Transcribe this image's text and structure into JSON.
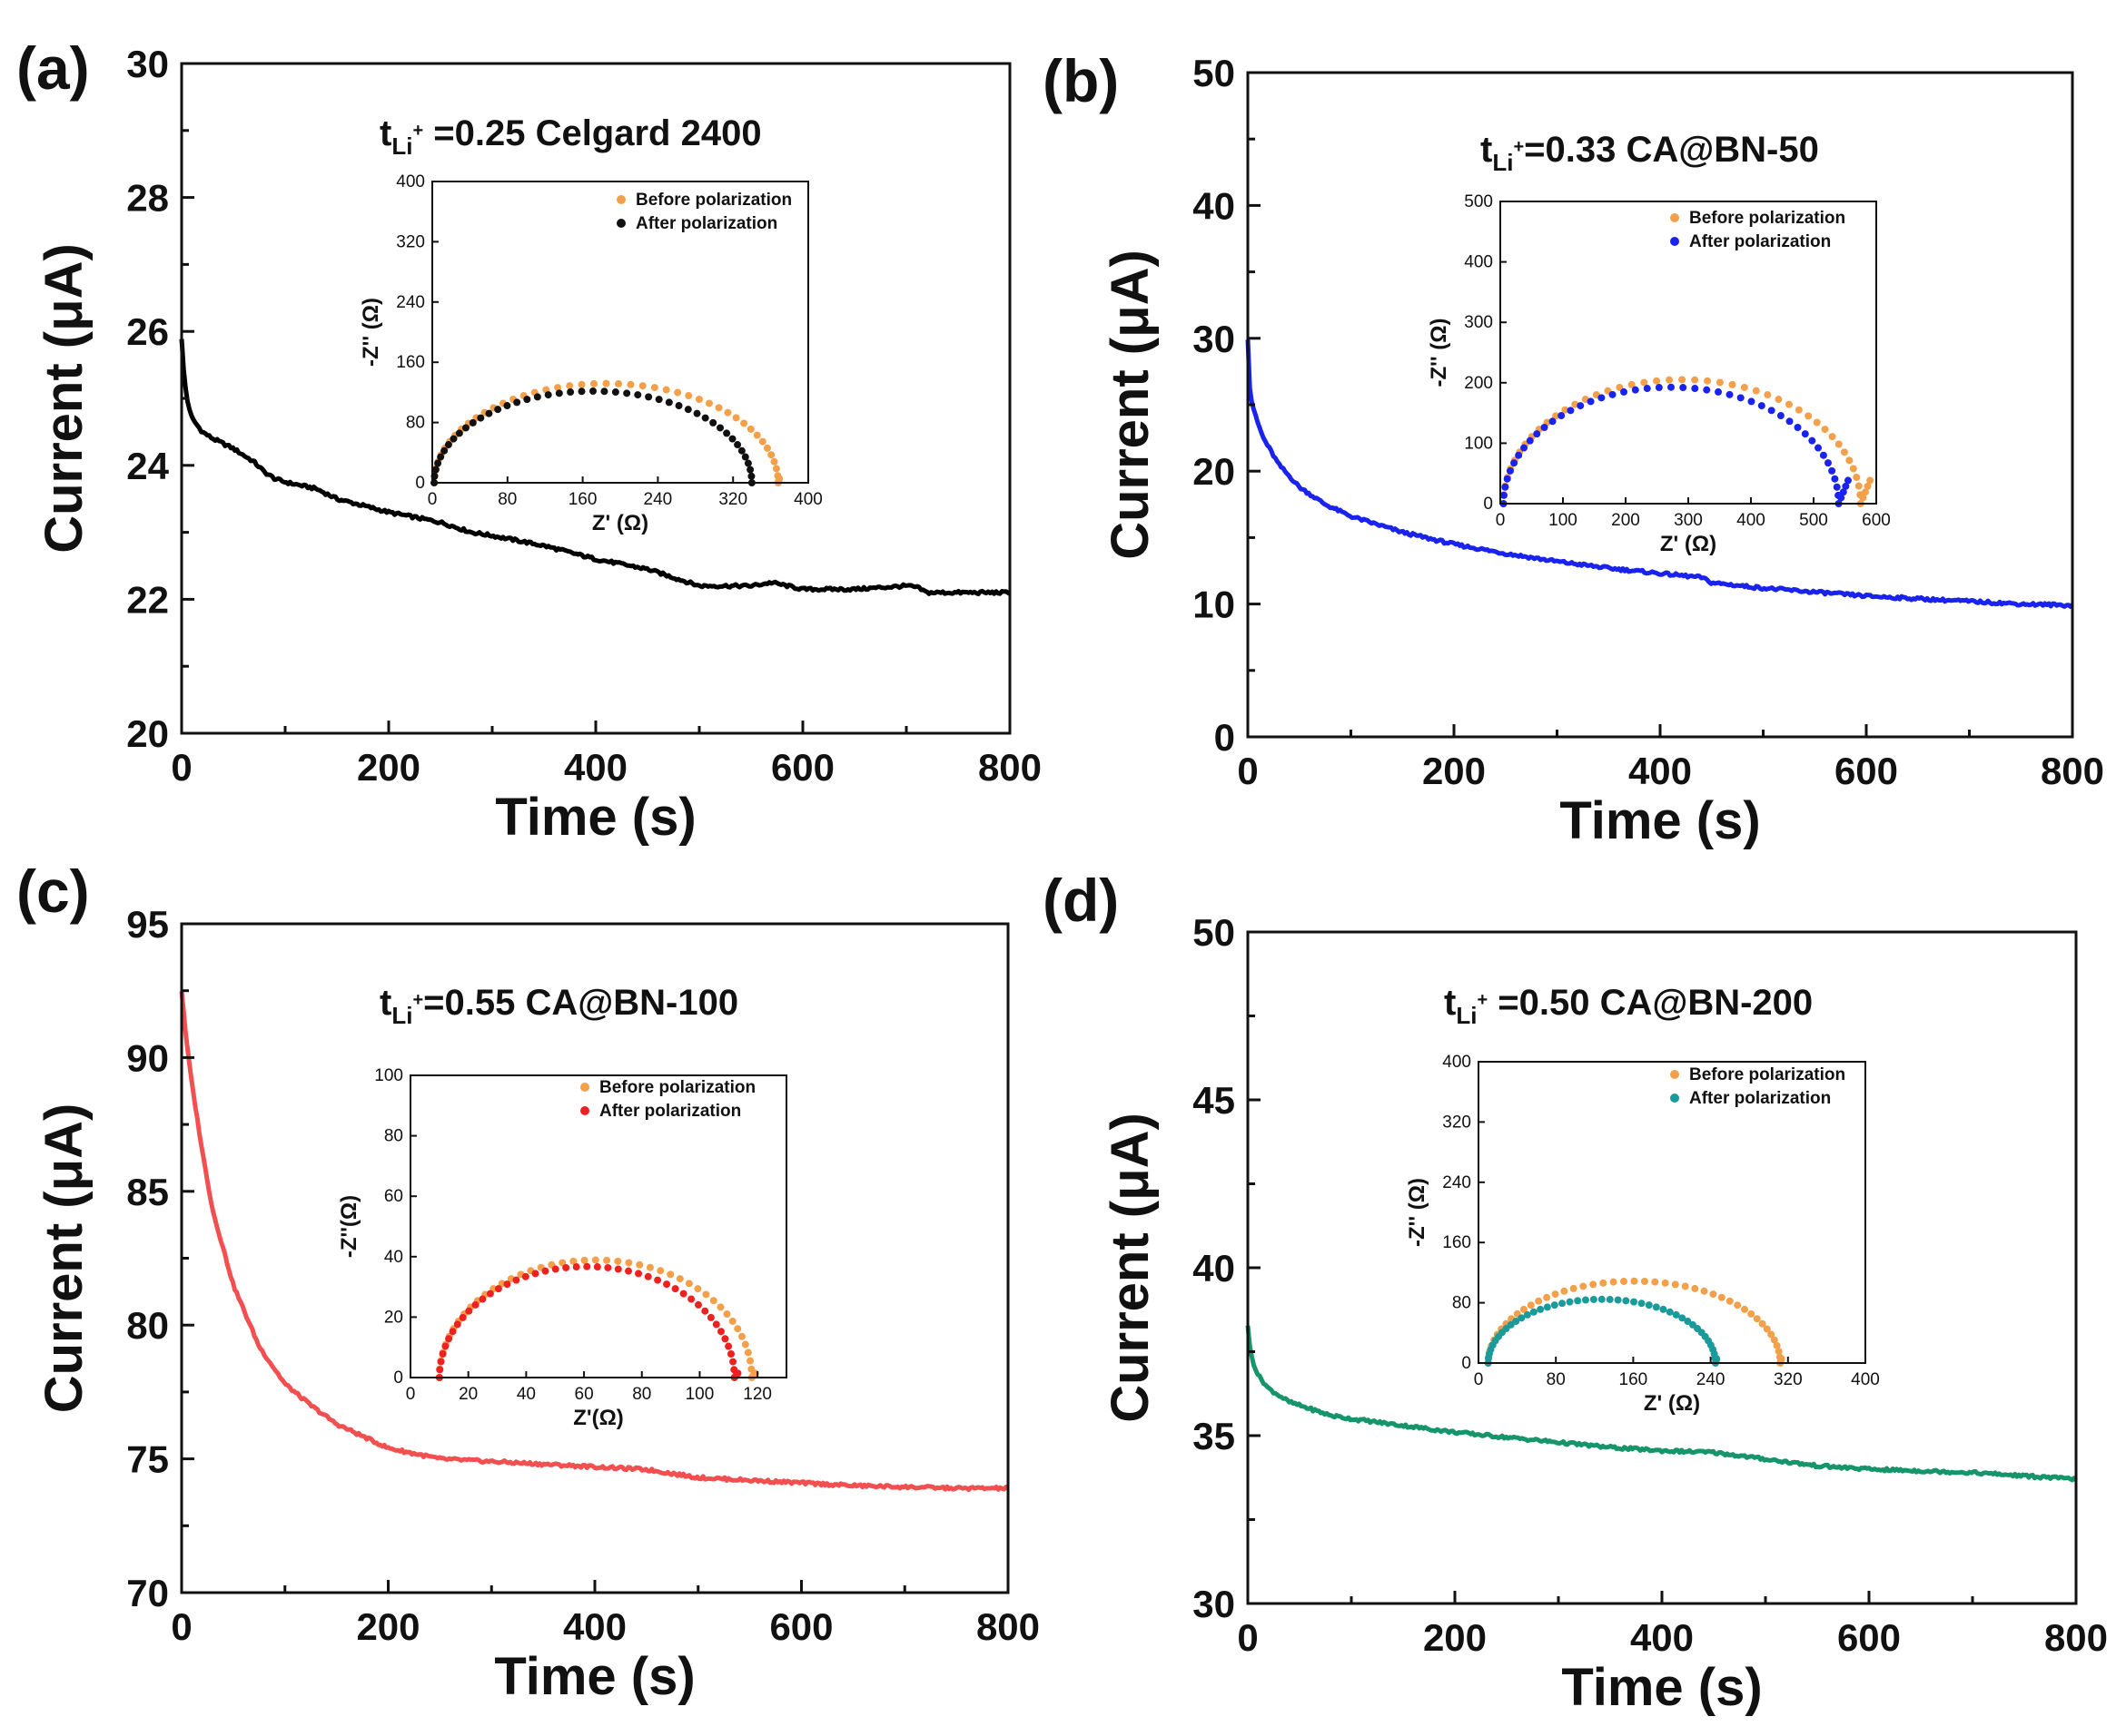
{
  "chart_data": [
    {
      "type": "line",
      "panel_label": "(a)",
      "xlabel": "Time (s)",
      "ylabel": "Current (μA)",
      "xlim": [
        0,
        800
      ],
      "ylim": [
        20,
        30
      ],
      "xticks": [
        0,
        200,
        400,
        600,
        800
      ],
      "yticks": [
        20,
        22,
        24,
        26,
        28,
        30
      ],
      "annotation": {
        "t": "t",
        "sub": "Li",
        "sup": "+",
        "text": " =0.25   Celgard 2400"
      },
      "series": [
        {
          "name": "Current",
          "color": "#000000",
          "x": [
            0,
            2,
            5,
            10,
            20,
            30,
            50,
            70,
            80,
            90,
            100,
            130,
            150,
            200,
            250,
            280,
            300,
            350,
            400,
            450,
            480,
            500,
            520,
            550,
            570,
            600,
            650,
            700,
            710,
            720,
            750,
            800
          ],
          "y": [
            25.9,
            25.4,
            25.0,
            24.7,
            24.5,
            24.4,
            24.25,
            24.05,
            23.9,
            23.8,
            23.75,
            23.65,
            23.5,
            23.3,
            23.15,
            23.0,
            22.95,
            22.8,
            22.6,
            22.45,
            22.3,
            22.2,
            22.2,
            22.2,
            22.25,
            22.15,
            22.15,
            22.2,
            22.18,
            22.1,
            22.1,
            22.1
          ]
        }
      ],
      "inset": {
        "xlabel": "Z' (Ω)",
        "ylabel": "-Z'' (Ω)",
        "xlim": [
          0,
          400
        ],
        "ylim": [
          0,
          400
        ],
        "xticks": [
          0,
          80,
          160,
          240,
          320,
          400
        ],
        "yticks": [
          0,
          80,
          160,
          240,
          320,
          400
        ],
        "series": [
          {
            "name": "Before polarization",
            "color": "#f4a04a",
            "r0": 2,
            "r1": 368,
            "tail": 2
          },
          {
            "name": "After polarization",
            "color": "#111111",
            "r0": 2,
            "r1": 340,
            "tail": 0
          }
        ]
      }
    },
    {
      "type": "line",
      "panel_label": "(b)",
      "xlabel": "Time (s)",
      "ylabel": "Current (μA)",
      "xlim": [
        0,
        800
      ],
      "ylim": [
        0,
        50
      ],
      "xticks": [
        0,
        200,
        400,
        600,
        800
      ],
      "yticks": [
        0,
        10,
        20,
        30,
        40,
        50
      ],
      "annotation": {
        "t": "t",
        "sub": "Li",
        "sup": "+",
        "text": "=0.33  CA@BN-50"
      },
      "series": [
        {
          "name": "Current",
          "color": "#1a22ee",
          "x": [
            0,
            1,
            3,
            8,
            15,
            30,
            50,
            75,
            100,
            150,
            200,
            250,
            300,
            350,
            400,
            440,
            450,
            500,
            550,
            600,
            650,
            700,
            750,
            800
          ],
          "y": [
            30,
            27,
            25.5,
            24,
            22.5,
            20.5,
            18.8,
            17.5,
            16.6,
            15.4,
            14.5,
            13.8,
            13.2,
            12.7,
            12.3,
            12.0,
            11.6,
            11.2,
            10.9,
            10.6,
            10.4,
            10.2,
            10.0,
            9.9
          ]
        }
      ],
      "inset": {
        "xlabel": "Z' (Ω)",
        "ylabel": "-Z'' (Ω)",
        "xlim": [
          0,
          600
        ],
        "ylim": [
          0,
          500
        ],
        "xticks": [
          0,
          100,
          200,
          300,
          400,
          500,
          600
        ],
        "yticks": [
          0,
          100,
          200,
          300,
          400,
          500
        ],
        "series": [
          {
            "name": "Before polarization",
            "color": "#f4a04a",
            "r0": 5,
            "r1": 575,
            "tail": 25
          },
          {
            "name": "After polarization",
            "color": "#1a22ee",
            "r0": 5,
            "r1": 540,
            "tail": 25
          }
        ]
      }
    },
    {
      "type": "line",
      "panel_label": "(c)",
      "xlabel": "Time (s)",
      "ylabel": "Current (μA)",
      "xlim": [
        0,
        800
      ],
      "ylim": [
        70,
        95
      ],
      "xticks": [
        0,
        200,
        400,
        600,
        800
      ],
      "yticks": [
        70,
        75,
        80,
        85,
        90,
        95
      ],
      "annotation": {
        "t": "t",
        "sub": "Li",
        "sup": "+",
        "text": "=0.55  CA@BN-100"
      },
      "series": [
        {
          "name": "Current",
          "color": "#f25050",
          "x": [
            0,
            5,
            10,
            20,
            30,
            50,
            75,
            100,
            125,
            150,
            200,
            250,
            300,
            350,
            400,
            450,
            500,
            550,
            600,
            650,
            700,
            750,
            800
          ],
          "y": [
            92.5,
            90.5,
            89,
            86.5,
            84.3,
            81.5,
            79.2,
            77.8,
            77.0,
            76.3,
            75.4,
            75.0,
            74.9,
            74.8,
            74.7,
            74.6,
            74.3,
            74.2,
            74.1,
            74.0,
            73.95,
            73.9,
            73.9
          ]
        }
      ],
      "inset": {
        "xlabel": "Z'(Ω)",
        "ylabel": "-Z''(Ω)",
        "xlim": [
          0,
          130
        ],
        "ylim": [
          0,
          100
        ],
        "xticks": [
          0,
          20,
          40,
          60,
          80,
          100,
          120
        ],
        "yticks": [
          0,
          20,
          40,
          60,
          80,
          100
        ],
        "series": [
          {
            "name": "Before polarization",
            "color": "#f4a04a",
            "r0": 10,
            "r1": 118,
            "tail": 2
          },
          {
            "name": "After polarization",
            "color": "#ee2020",
            "r0": 10,
            "r1": 112,
            "tail": 2
          }
        ]
      }
    },
    {
      "type": "line",
      "panel_label": "(d)",
      "xlabel": "Time (s)",
      "ylabel": "Current (μA)",
      "xlim": [
        0,
        800
      ],
      "ylim": [
        30,
        50
      ],
      "xticks": [
        0,
        200,
        400,
        600,
        800
      ],
      "yticks": [
        30,
        35,
        40,
        45,
        50
      ],
      "annotation": {
        "t": "t",
        "sub": "Li",
        "sup": "+",
        "text": " =0.50  CA@BN-200"
      },
      "series": [
        {
          "name": "Current",
          "color": "#16946a",
          "x": [
            0,
            2,
            5,
            10,
            20,
            40,
            60,
            80,
            100,
            150,
            200,
            250,
            300,
            350,
            400,
            450,
            500,
            550,
            600,
            650,
            700,
            750,
            800
          ],
          "y": [
            38.3,
            37.6,
            37.2,
            36.8,
            36.4,
            36.0,
            35.8,
            35.6,
            35.5,
            35.3,
            35.1,
            34.95,
            34.8,
            34.65,
            34.55,
            34.5,
            34.3,
            34.1,
            34.0,
            33.95,
            33.9,
            33.8,
            33.7
          ]
        }
      ],
      "inset": {
        "xlabel": "Z' (Ω)",
        "ylabel": "-Z'' (Ω)",
        "xlim": [
          0,
          400
        ],
        "ylim": [
          0,
          400
        ],
        "xticks": [
          0,
          80,
          160,
          240,
          320,
          400
        ],
        "yticks": [
          0,
          80,
          160,
          240,
          320,
          400
        ],
        "series": [
          {
            "name": "Before polarization",
            "color": "#f4a04a",
            "r0": 10,
            "r1": 312,
            "tail": 2
          },
          {
            "name": "After polarization",
            "color": "#1a9a9a",
            "r0": 10,
            "r1": 245,
            "tail": 2
          }
        ]
      }
    }
  ]
}
